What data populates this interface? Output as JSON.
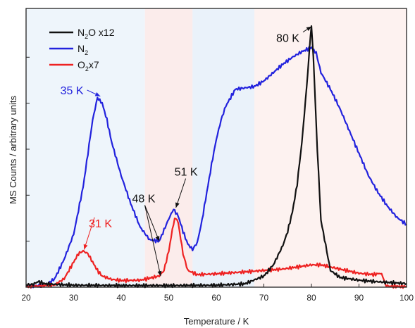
{
  "chart_data": {
    "type": "line",
    "title": "",
    "xlabel": "Temperature / K",
    "ylabel": "MS Counts / arbitrary units",
    "xlim": [
      20,
      100
    ],
    "ylim": [
      0,
      1
    ],
    "x_ticks": [
      20,
      30,
      40,
      50,
      60,
      70,
      80,
      90,
      100
    ],
    "y_tick_values": [
      0.165,
      0.33,
      0.495,
      0.66,
      0.825
    ],
    "y_tick_labels_shown": false,
    "grid": false,
    "legend_position": "top-left",
    "legend": [
      {
        "text": "N",
        "sub": "2",
        "rest": "O x12",
        "color": "#111111"
      },
      {
        "text": "N",
        "sub": "2",
        "rest": "",
        "color": "#2222dd"
      },
      {
        "text": "O",
        "sub": "2",
        "rest": "x7",
        "color": "#ee2222"
      }
    ],
    "bands": [
      {
        "x0": 20,
        "x1": 45,
        "color": "#eef5fb"
      },
      {
        "x0": 45,
        "x1": 55,
        "color": "#fbeceb"
      },
      {
        "x0": 55,
        "x1": 68,
        "color": "#eaf2fa"
      },
      {
        "x0": 68,
        "x1": 100,
        "color": "#fdf2f0"
      }
    ],
    "series": [
      {
        "name": "N2O x12",
        "color": "#111111",
        "x": [
          20,
          21.5,
          22.5,
          24,
          30,
          40,
          50,
          60,
          66,
          70,
          72,
          74,
          75,
          76,
          77,
          78,
          79,
          79.6,
          80,
          80.4,
          81,
          82,
          84,
          86,
          90,
          95,
          100
        ],
        "y": [
          0.008,
          0.01,
          0.02,
          0.012,
          0.007,
          0.006,
          0.006,
          0.007,
          0.012,
          0.04,
          0.08,
          0.15,
          0.2,
          0.27,
          0.37,
          0.52,
          0.72,
          0.86,
          0.935,
          0.83,
          0.58,
          0.24,
          0.06,
          0.035,
          0.025,
          0.018,
          0.013
        ]
      },
      {
        "name": "N2",
        "color": "#2222dd",
        "x": [
          20,
          24,
          26,
          28,
          30,
          32,
          33,
          34,
          35,
          36,
          37,
          38,
          40,
          42,
          44,
          46,
          48,
          50,
          51,
          52,
          53,
          54,
          55,
          56,
          57,
          58,
          59,
          60,
          61,
          62,
          63,
          64,
          66,
          68,
          70,
          72,
          74,
          76,
          78,
          80,
          81,
          82,
          84,
          86,
          88,
          90,
          92,
          94,
          96,
          98,
          100
        ],
        "y": [
          0.003,
          0.006,
          0.03,
          0.1,
          0.19,
          0.36,
          0.48,
          0.6,
          0.68,
          0.66,
          0.6,
          0.52,
          0.4,
          0.3,
          0.215,
          0.17,
          0.165,
          0.245,
          0.28,
          0.255,
          0.2,
          0.155,
          0.135,
          0.16,
          0.24,
          0.34,
          0.44,
          0.53,
          0.6,
          0.65,
          0.68,
          0.71,
          0.715,
          0.72,
          0.74,
          0.77,
          0.8,
          0.825,
          0.845,
          0.86,
          0.84,
          0.77,
          0.71,
          0.64,
          0.56,
          0.48,
          0.4,
          0.34,
          0.29,
          0.25,
          0.225
        ]
      },
      {
        "name": "O2 x7",
        "color": "#ee2222",
        "x": [
          20,
          26,
          28,
          30,
          31,
          32,
          33,
          34,
          35,
          36,
          38,
          40,
          44,
          48,
          49,
          50,
          51,
          51.5,
          52,
          53,
          54,
          56,
          60,
          66,
          70,
          74,
          78,
          80,
          82,
          86,
          90,
          93,
          94.5,
          95,
          95.5,
          96,
          100
        ],
        "y": [
          0.002,
          0.008,
          0.03,
          0.09,
          0.12,
          0.13,
          0.12,
          0.09,
          0.06,
          0.04,
          0.028,
          0.024,
          0.025,
          0.04,
          0.06,
          0.13,
          0.23,
          0.25,
          0.23,
          0.12,
          0.06,
          0.045,
          0.048,
          0.055,
          0.06,
          0.065,
          0.075,
          0.08,
          0.08,
          0.065,
          0.05,
          0.045,
          0.05,
          0.04,
          0.01,
          0.004,
          0.002
        ]
      }
    ],
    "annotations": [
      {
        "text": "80 K",
        "color": "#111111",
        "at_x": 80,
        "at_y": 0.935,
        "label_x": 72.6,
        "label_y": 0.88
      },
      {
        "text": "35 K",
        "color": "#2222dd",
        "at_x": 35.6,
        "at_y": 0.685,
        "label_x": 27.2,
        "label_y": 0.692
      },
      {
        "text": "51 K",
        "color": "#111111",
        "at_x": 51.5,
        "at_y": 0.285,
        "label_x": 51.2,
        "label_y": 0.4
      },
      {
        "text": "48 K",
        "color": "#111111",
        "at_x": 48,
        "at_y": 0.165,
        "label_x": 42.3,
        "label_y": 0.304
      },
      {
        "text": "31 K",
        "color": "#ee2222",
        "at_x": 32.2,
        "at_y": 0.135,
        "label_x": 33.2,
        "label_y": 0.215
      }
    ]
  }
}
